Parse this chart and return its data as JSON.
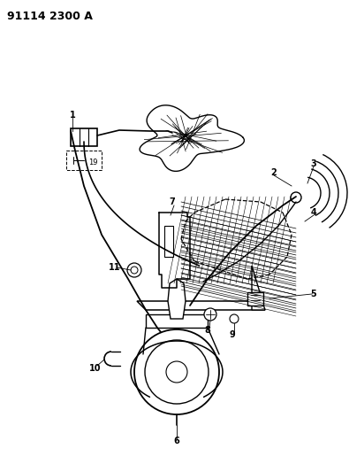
{
  "title": "91114 2300 A",
  "bg_color": "#ffffff",
  "line_color": "#000000",
  "figsize": [
    3.95,
    5.33
  ],
  "dpi": 100,
  "label_fontsize": 7,
  "title_fontsize": 9
}
